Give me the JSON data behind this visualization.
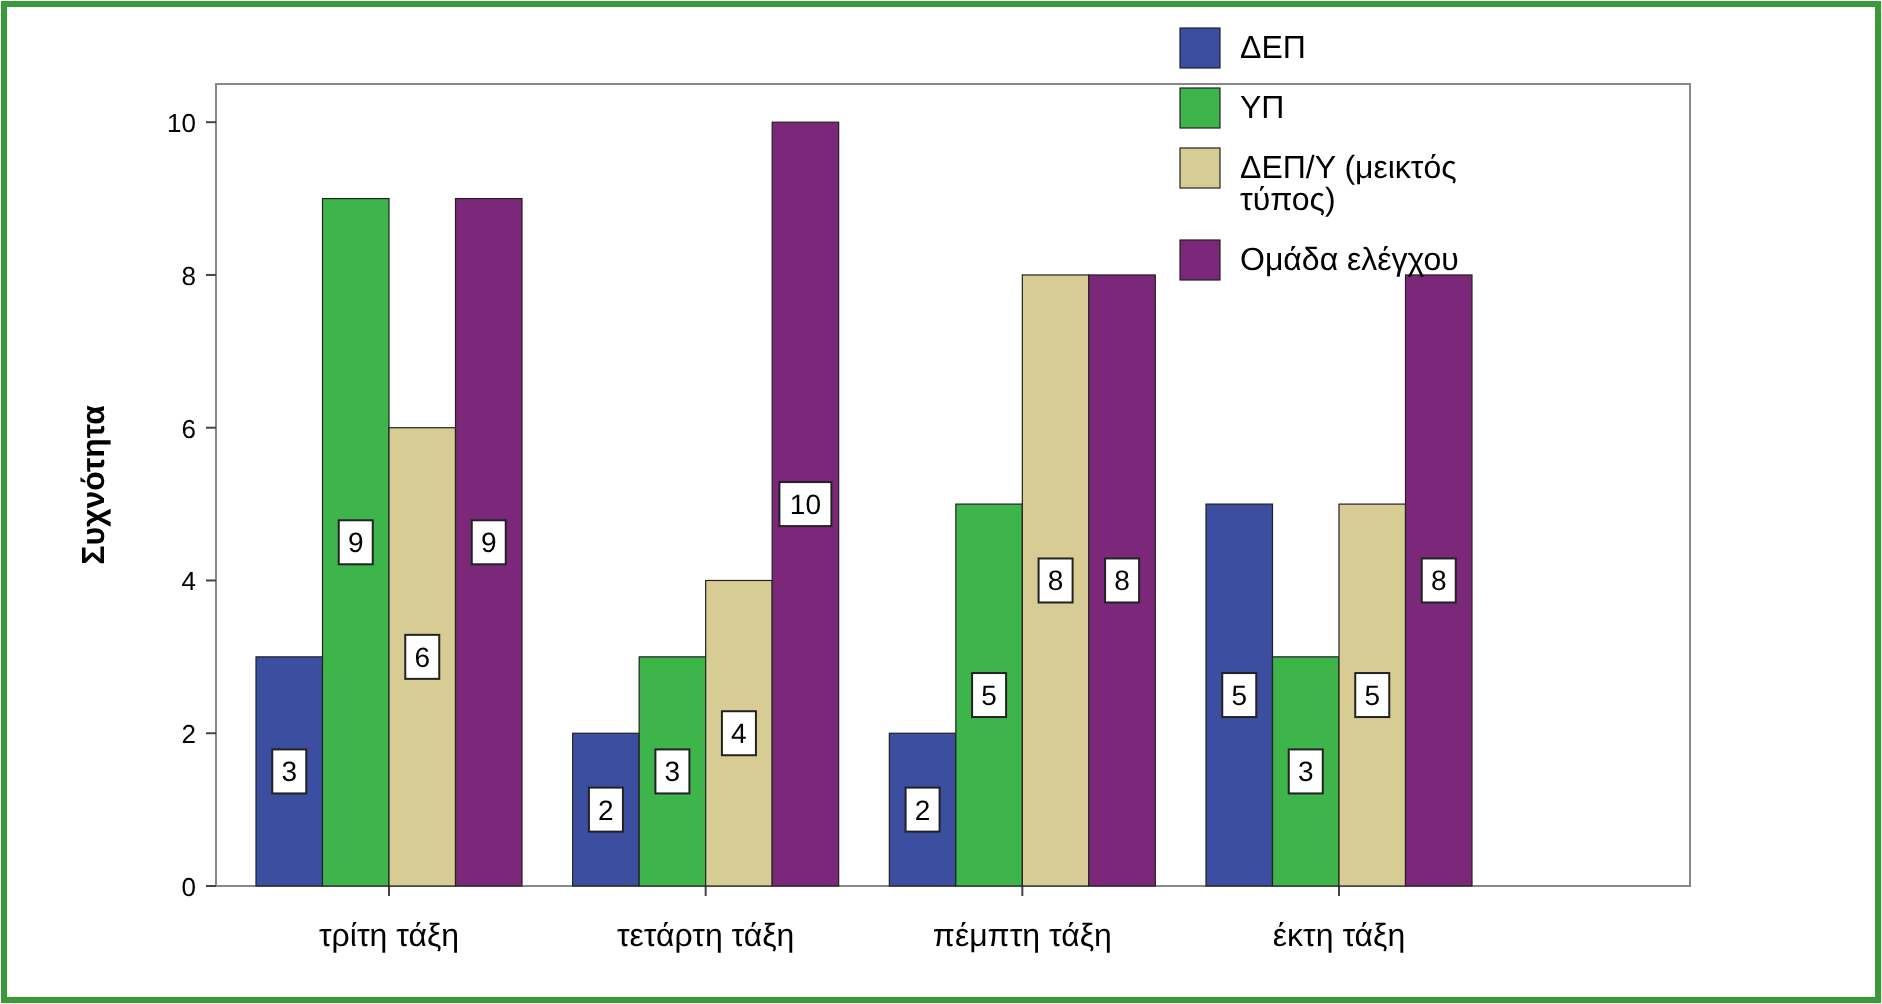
{
  "chart_data": {
    "type": "bar",
    "ylabel": "Συχνότητα",
    "categories": [
      "τρίτη τάξη",
      "τετάρτη τάξη",
      "πέμπτη τάξη",
      "έκτη τάξη"
    ],
    "series": [
      {
        "name": "ΔΕΠ",
        "color": "#3b4ea0",
        "values": [
          3,
          2,
          2,
          5
        ]
      },
      {
        "name": "ΥΠ",
        "color": "#3db54a",
        "values": [
          9,
          3,
          5,
          3
        ]
      },
      {
        "name": "ΔΕΠ/Υ (μεικτός τύπος)",
        "color": "#d6cc94",
        "values": [
          6,
          4,
          8,
          5
        ]
      },
      {
        "name": "Ομάδα ελέγχου",
        "color": "#7c287a",
        "values": [
          9,
          10,
          8,
          8
        ]
      }
    ],
    "ylim": [
      0,
      10.5
    ],
    "yticks": [
      0,
      2,
      4,
      6,
      8,
      10
    ],
    "data_labels": true,
    "legend": "top right",
    "grid": false
  }
}
